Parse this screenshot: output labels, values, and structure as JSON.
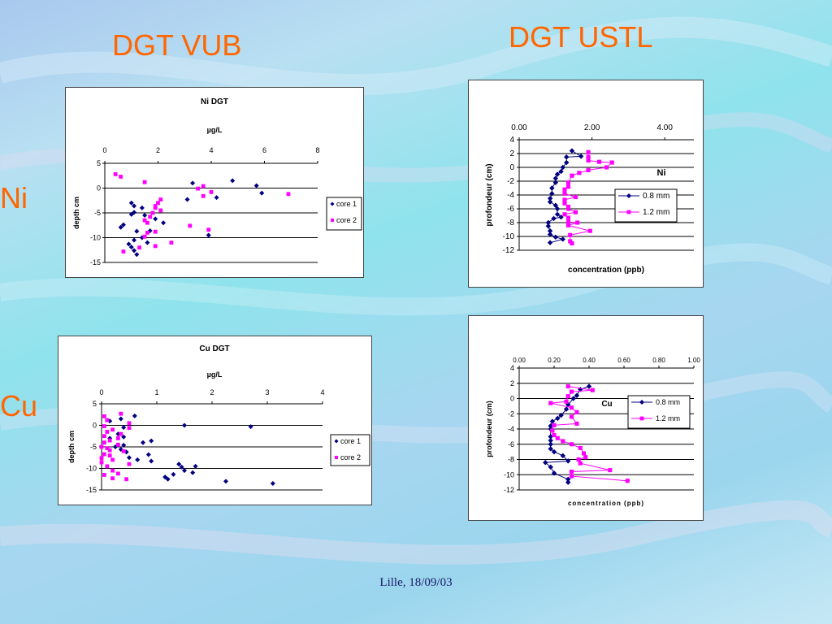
{
  "headings": {
    "vub": "DGT VUB",
    "ustl": "DGT USTL",
    "row_ni": "Ni",
    "row_cu": "Cu"
  },
  "footer": "Lille, 18/09/03",
  "colors": {
    "heading": "#ff6600",
    "series_dark": "#000080",
    "series_pink": "#ff00ff"
  },
  "chart_data": [
    {
      "id": "vub-ni",
      "type": "scatter",
      "title": "Ni DGT",
      "subtitle": "µg/L",
      "xlabel": "",
      "ylabel": "depth cm",
      "xlim": [
        0,
        8
      ],
      "ylim": [
        -15,
        5
      ],
      "x_ticks": [
        "0",
        "2",
        "4",
        "6",
        "8"
      ],
      "y_ticks": [
        "5",
        "0",
        "-5",
        "-10",
        "-15"
      ],
      "grid": "horizontal",
      "x_axis_position": "top",
      "legend": "right",
      "series": [
        {
          "name": "core 1",
          "marker": "diamond",
          "color": "#000080",
          "points": [
            [
              3.3,
              1.0
            ],
            [
              4.8,
              1.5
            ],
            [
              5.7,
              0.5
            ],
            [
              5.9,
              -1.0
            ],
            [
              3.1,
              -2.3
            ],
            [
              4.2,
              -1.9
            ],
            [
              1.0,
              -3.0
            ],
            [
              1.1,
              -3.6
            ],
            [
              1.4,
              -4.0
            ],
            [
              1.1,
              -4.9
            ],
            [
              1.0,
              -5.3
            ],
            [
              1.5,
              -5.5
            ],
            [
              1.9,
              -6.2
            ],
            [
              2.2,
              -7.0
            ],
            [
              0.7,
              -7.4
            ],
            [
              0.6,
              -7.9
            ],
            [
              1.7,
              -8.6
            ],
            [
              1.2,
              -8.7
            ],
            [
              3.9,
              -9.5
            ],
            [
              1.4,
              -10.0
            ],
            [
              1.1,
              -10.5
            ],
            [
              1.6,
              -11.0
            ],
            [
              0.9,
              -11.3
            ],
            [
              1.0,
              -11.9
            ],
            [
              1.1,
              -12.6
            ],
            [
              1.2,
              -13.4
            ]
          ]
        },
        {
          "name": "core 2",
          "marker": "square",
          "color": "#ff00ff",
          "points": [
            [
              0.4,
              2.8
            ],
            [
              0.6,
              2.3
            ],
            [
              1.5,
              1.2
            ],
            [
              3.5,
              -0.1
            ],
            [
              3.7,
              0.4
            ],
            [
              3.7,
              -1.6
            ],
            [
              4.0,
              -0.8
            ],
            [
              6.9,
              -1.2
            ],
            [
              2.1,
              -2.3
            ],
            [
              2.0,
              -3.0
            ],
            [
              1.9,
              -3.6
            ],
            [
              1.9,
              -4.0
            ],
            [
              2.1,
              -4.5
            ],
            [
              1.8,
              -5.0
            ],
            [
              1.7,
              -5.8
            ],
            [
              1.5,
              -6.5
            ],
            [
              1.6,
              -7.0
            ],
            [
              3.2,
              -7.6
            ],
            [
              3.9,
              -8.4
            ],
            [
              1.9,
              -8.8
            ],
            [
              1.6,
              -9.0
            ],
            [
              1.5,
              -9.8
            ],
            [
              2.5,
              -11.0
            ],
            [
              1.9,
              -11.7
            ],
            [
              1.3,
              -12.0
            ],
            [
              0.7,
              -12.8
            ]
          ]
        }
      ]
    },
    {
      "id": "vub-cu",
      "type": "scatter",
      "title": "Cu DGT",
      "subtitle": "µg/L",
      "xlabel": "",
      "ylabel": "depth cm",
      "xlim": [
        0,
        4
      ],
      "ylim": [
        -15,
        5
      ],
      "x_ticks": [
        "0",
        "1",
        "2",
        "3",
        "4"
      ],
      "y_ticks": [
        "5",
        "0",
        "-5",
        "-10",
        "-15"
      ],
      "grid": "horizontal",
      "x_axis_position": "top",
      "legend": "right",
      "series": [
        {
          "name": "core 1",
          "marker": "diamond",
          "color": "#000080",
          "points": [
            [
              0.6,
              2.2
            ],
            [
              0.35,
              1.5
            ],
            [
              0.15,
              1.0
            ],
            [
              1.5,
              0.0
            ],
            [
              2.7,
              -0.3
            ],
            [
              0.4,
              -0.5
            ],
            [
              0.3,
              -2.0
            ],
            [
              0.4,
              -2.7
            ],
            [
              0.15,
              -3.0
            ],
            [
              0.9,
              -3.6
            ],
            [
              0.75,
              -4.0
            ],
            [
              0.4,
              -4.6
            ],
            [
              0.25,
              -5.0
            ],
            [
              0.35,
              -5.6
            ],
            [
              0.45,
              -6.2
            ],
            [
              0.85,
              -6.8
            ],
            [
              0.5,
              -7.5
            ],
            [
              0.65,
              -8.0
            ],
            [
              0.9,
              -8.3
            ],
            [
              1.4,
              -9.0
            ],
            [
              1.7,
              -9.5
            ],
            [
              1.45,
              -9.7
            ],
            [
              1.5,
              -10.5
            ],
            [
              1.65,
              -11.0
            ],
            [
              1.3,
              -11.4
            ],
            [
              1.15,
              -12.0
            ],
            [
              1.2,
              -12.5
            ],
            [
              2.25,
              -13.0
            ],
            [
              3.1,
              -13.5
            ]
          ]
        },
        {
          "name": "core 2",
          "marker": "square",
          "color": "#ff00ff",
          "points": [
            [
              0.05,
              2.1
            ],
            [
              0.35,
              2.7
            ],
            [
              0.1,
              1.2
            ],
            [
              0.5,
              0.5
            ],
            [
              0.05,
              -0.2
            ],
            [
              0.2,
              -1.0
            ],
            [
              0.5,
              -0.6
            ],
            [
              0.1,
              -1.5
            ],
            [
              0.05,
              -2.5
            ],
            [
              0.35,
              -2.0
            ],
            [
              0.3,
              -3.0
            ],
            [
              0.15,
              -3.5
            ],
            [
              0.05,
              -4.0
            ],
            [
              0.3,
              -4.5
            ],
            [
              0.0,
              -5.0
            ],
            [
              0.1,
              -5.3
            ],
            [
              0.15,
              -5.8
            ],
            [
              0.4,
              -6.0
            ],
            [
              0.05,
              -6.7
            ],
            [
              0.15,
              -7.0
            ],
            [
              0.0,
              -7.6
            ],
            [
              0.2,
              -8.0
            ],
            [
              0.0,
              -8.6
            ],
            [
              0.1,
              -9.5
            ],
            [
              0.5,
              -9.0
            ],
            [
              0.2,
              -10.5
            ],
            [
              0.3,
              -11.2
            ],
            [
              0.05,
              -11.5
            ],
            [
              0.2,
              -12.3
            ],
            [
              0.45,
              -12.5
            ]
          ]
        }
      ]
    },
    {
      "id": "ustl-ni",
      "type": "line",
      "title": "",
      "annotation": "Ni",
      "xlabel": "concentration (ppb)",
      "ylabel": "profondeur (cm)",
      "xlim": [
        0,
        4.8
      ],
      "ylim": [
        -12,
        4
      ],
      "x_ticks": [
        "0.00",
        "2.00",
        "4.00"
      ],
      "x_tick_values": [
        0,
        2,
        4
      ],
      "y_ticks": [
        "4",
        "2",
        "0",
        "-2",
        "-4",
        "-6",
        "-8",
        "-10",
        "-12"
      ],
      "grid": "horizontal",
      "x_axis_position": "top",
      "legend": "inside-right",
      "series": [
        {
          "name": "0.8 mm",
          "marker": "diamond",
          "color": "#000080",
          "points": [
            [
              1.45,
              2.4
            ],
            [
              1.7,
              1.6
            ],
            [
              1.3,
              1.5
            ],
            [
              1.3,
              0.7
            ],
            [
              1.2,
              0.0
            ],
            [
              1.15,
              -0.6
            ],
            [
              1.05,
              -1.0
            ],
            [
              1.0,
              -1.6
            ],
            [
              1.0,
              -2.2
            ],
            [
              0.9,
              -3.0
            ],
            [
              0.9,
              -3.8
            ],
            [
              0.85,
              -4.5
            ],
            [
              0.85,
              -5.0
            ],
            [
              1.0,
              -5.5
            ],
            [
              1.05,
              -6.0
            ],
            [
              1.05,
              -6.8
            ],
            [
              1.15,
              -7.2
            ],
            [
              0.95,
              -7.4
            ],
            [
              0.8,
              -8.0
            ],
            [
              0.8,
              -8.5
            ],
            [
              0.85,
              -9.2
            ],
            [
              0.85,
              -9.7
            ],
            [
              1.0,
              -10.1
            ],
            [
              1.2,
              -10.4
            ],
            [
              0.85,
              -10.9
            ]
          ]
        },
        {
          "name": "1.2 mm",
          "marker": "square",
          "color": "#ff00ff",
          "points": [
            [
              1.9,
              2.2
            ],
            [
              1.9,
              1.5
            ],
            [
              1.9,
              1.0
            ],
            [
              2.2,
              0.8
            ],
            [
              2.55,
              0.7
            ],
            [
              2.4,
              0.0
            ],
            [
              1.9,
              -0.4
            ],
            [
              1.65,
              -0.8
            ],
            [
              1.45,
              -1.2
            ],
            [
              1.35,
              -2.2
            ],
            [
              1.35,
              -2.8
            ],
            [
              1.25,
              -3.2
            ],
            [
              1.25,
              -3.8
            ],
            [
              1.55,
              -4.3
            ],
            [
              1.25,
              -4.7
            ],
            [
              1.25,
              -5.2
            ],
            [
              1.35,
              -5.7
            ],
            [
              1.35,
              -6.0
            ],
            [
              1.55,
              -6.5
            ],
            [
              1.25,
              -6.8
            ],
            [
              1.35,
              -7.3
            ],
            [
              1.35,
              -7.9
            ],
            [
              1.6,
              -8.0
            ],
            [
              1.35,
              -8.4
            ],
            [
              1.95,
              -9.2
            ],
            [
              1.4,
              -9.8
            ],
            [
              1.4,
              -10.7
            ],
            [
              1.45,
              -11.0
            ]
          ]
        }
      ]
    },
    {
      "id": "ustl-cu",
      "type": "line",
      "title": "",
      "annotation": "Cu",
      "xlabel": "concentration (ppb)",
      "ylabel": "profondeur (cm)",
      "xlim": [
        0,
        1.0
      ],
      "ylim": [
        -12,
        4
      ],
      "x_ticks": [
        "0.00",
        "0.20",
        "0.40",
        "0.60",
        "0.80",
        "1.00"
      ],
      "x_tick_values": [
        0,
        0.2,
        0.4,
        0.6,
        0.8,
        1.0
      ],
      "y_ticks": [
        "4",
        "2",
        "0",
        "-2",
        "-4",
        "-6",
        "-8",
        "-10",
        "-12"
      ],
      "grid": "horizontal",
      "x_axis_position": "top",
      "legend": "inside-right",
      "series": [
        {
          "name": "0.8 mm",
          "marker": "diamond",
          "color": "#000080",
          "points": [
            [
              0.4,
              1.6
            ],
            [
              0.35,
              1.2
            ],
            [
              0.33,
              0.4
            ],
            [
              0.31,
              0.0
            ],
            [
              0.28,
              -0.8
            ],
            [
              0.27,
              -1.4
            ],
            [
              0.24,
              -2.2
            ],
            [
              0.22,
              -2.6
            ],
            [
              0.19,
              -3.0
            ],
            [
              0.18,
              -3.6
            ],
            [
              0.18,
              -4.0
            ],
            [
              0.18,
              -5.0
            ],
            [
              0.18,
              -5.5
            ],
            [
              0.18,
              -6.0
            ],
            [
              0.18,
              -6.6
            ],
            [
              0.2,
              -7.0
            ],
            [
              0.25,
              -7.5
            ],
            [
              0.28,
              -8.2
            ],
            [
              0.15,
              -8.4
            ],
            [
              0.18,
              -9.0
            ],
            [
              0.2,
              -9.8
            ],
            [
              0.28,
              -10.6
            ],
            [
              0.28,
              -11.0
            ]
          ]
        },
        {
          "name": "1.2 mm",
          "marker": "square",
          "color": "#ff00ff",
          "points": [
            [
              0.28,
              1.6
            ],
            [
              0.42,
              1.1
            ],
            [
              0.3,
              0.9
            ],
            [
              0.28,
              0.3
            ],
            [
              0.27,
              -0.4
            ],
            [
              0.18,
              -0.6
            ],
            [
              0.3,
              -1.2
            ],
            [
              0.33,
              -1.8
            ],
            [
              0.3,
              -2.4
            ],
            [
              0.33,
              -3.3
            ],
            [
              0.2,
              -3.5
            ],
            [
              0.19,
              -4.2
            ],
            [
              0.2,
              -4.8
            ],
            [
              0.22,
              -5.2
            ],
            [
              0.25,
              -5.6
            ],
            [
              0.3,
              -6.0
            ],
            [
              0.35,
              -6.5
            ],
            [
              0.37,
              -7.2
            ],
            [
              0.38,
              -7.7
            ],
            [
              0.34,
              -8.0
            ],
            [
              0.35,
              -8.5
            ],
            [
              0.52,
              -9.4
            ],
            [
              0.3,
              -9.6
            ],
            [
              0.3,
              -10.2
            ],
            [
              0.62,
              -10.8
            ]
          ]
        }
      ]
    }
  ]
}
